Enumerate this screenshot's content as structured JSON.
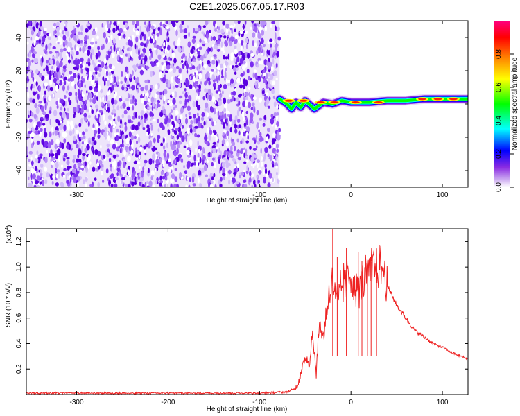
{
  "figure": {
    "title": "C2E1.2025.067.05.17.R03"
  },
  "chart_data": [
    {
      "type": "heatmap",
      "title": "",
      "xlabel": "Height of straight line (km)",
      "ylabel": "Frequency (Hz)",
      "xlim": [
        -355,
        128
      ],
      "ylim": [
        -50,
        50
      ],
      "xticks": [
        -300,
        -200,
        -100,
        0,
        100
      ],
      "yticks": [
        -40,
        -20,
        0,
        20,
        40
      ],
      "noise_region_x": [
        -355,
        -78
      ],
      "signal_track": {
        "x": [
          -78,
          -70,
          -65,
          -60,
          -55,
          -50,
          -40,
          -30,
          -20,
          -10,
          0,
          20,
          40,
          60,
          80,
          90,
          100,
          110,
          128
        ],
        "frequency_hz": [
          3,
          0,
          -3,
          1,
          -2,
          2,
          -3,
          1,
          0,
          2,
          1,
          1,
          2,
          2,
          3,
          3,
          3,
          3,
          3
        ]
      },
      "colorbar": {
        "label": "Normalized spectral amplitude",
        "range": [
          0,
          1
        ],
        "ticks": [
          0.0,
          0.2,
          0.4,
          0.6,
          0.8
        ],
        "colors": [
          "#ffffff",
          "#8a2be2",
          "#0000ff",
          "#00ffff",
          "#00ff00",
          "#ffff00",
          "#ff8000",
          "#ff0000",
          "#ff0080"
        ]
      }
    },
    {
      "type": "line",
      "title": "",
      "xlabel": "Height of straight line (km)",
      "ylabel": "SNR (10 * v/v)",
      "y_multiplier": "(x10",
      "y_multiplier_exp": "4",
      "y_multiplier_close": ")",
      "xlim": [
        -355,
        128
      ],
      "ylim": [
        0.0,
        1.3
      ],
      "xticks": [
        -300,
        -200,
        -100,
        0,
        100
      ],
      "yticks": [
        0.2,
        0.4,
        0.6,
        0.8,
        1.0,
        1.2
      ],
      "series": [
        {
          "color": "#ee2222",
          "x": [
            -355,
            -300,
            -250,
            -200,
            -150,
            -100,
            -70,
            -60,
            -55,
            -50,
            -45,
            -42,
            -38,
            -35,
            -30,
            -25,
            -20,
            -15,
            -10,
            -5,
            0,
            5,
            10,
            15,
            20,
            25,
            30,
            35,
            40,
            50,
            60,
            70,
            80,
            90,
            100,
            110,
            120,
            128
          ],
          "y": [
            0.01,
            0.01,
            0.01,
            0.01,
            0.01,
            0.01,
            0.02,
            0.05,
            0.15,
            0.3,
            0.25,
            0.5,
            0.15,
            0.55,
            0.45,
            0.75,
            0.9,
            0.7,
            0.85,
            0.9,
            0.95,
            0.8,
            0.85,
            0.9,
            0.95,
            1.0,
            0.98,
            1.0,
            0.85,
            0.7,
            0.6,
            0.5,
            0.45,
            0.4,
            0.37,
            0.33,
            0.3,
            0.28
          ]
        }
      ]
    }
  ]
}
